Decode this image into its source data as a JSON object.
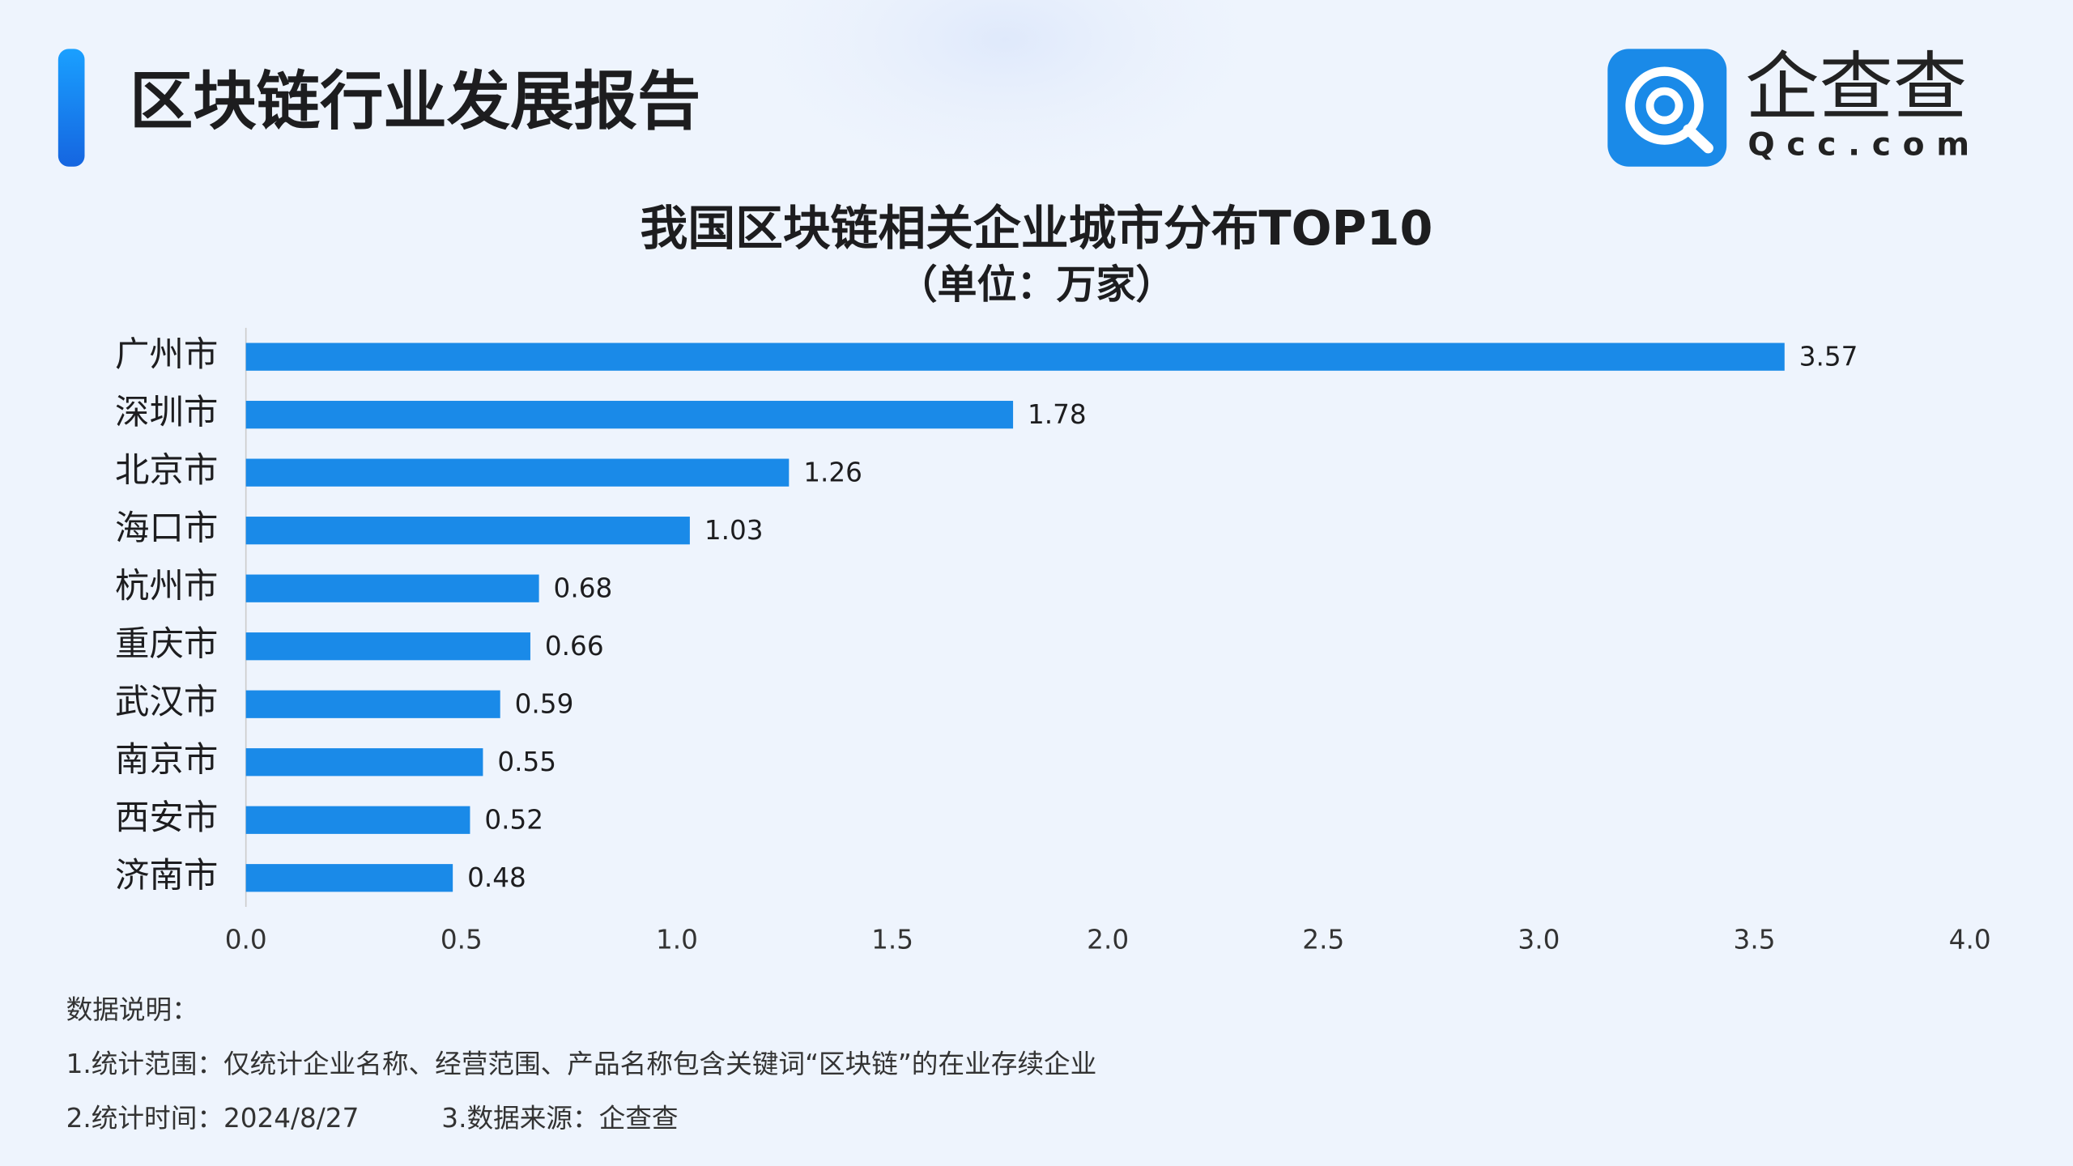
{
  "header": {
    "title": "区块链行业发展报告",
    "logo_text": "企查查",
    "logo_domain": "Qcc.com"
  },
  "chart_data": {
    "type": "bar",
    "orientation": "horizontal",
    "title": "我国区块链相关企业城市分布TOP10",
    "subtitle": "（单位：万家）",
    "categories": [
      "广州市",
      "深圳市",
      "北京市",
      "海口市",
      "杭州市",
      "重庆市",
      "武汉市",
      "南京市",
      "西安市",
      "济南市"
    ],
    "values": [
      3.57,
      1.78,
      1.26,
      1.03,
      0.68,
      0.66,
      0.59,
      0.55,
      0.52,
      0.48
    ],
    "color": "#1a8ae8",
    "xlim": [
      0,
      4
    ],
    "xticks": [
      {
        "value": 0,
        "label": "0.0"
      },
      {
        "value": 0.5,
        "label": "0.5"
      },
      {
        "value": 1,
        "label": "1.0"
      },
      {
        "value": 1.5,
        "label": "1.5"
      },
      {
        "value": 2,
        "label": "2.0"
      },
      {
        "value": 2.5,
        "label": "2.5"
      },
      {
        "value": 3,
        "label": "3.0"
      },
      {
        "value": 3.5,
        "label": "3.5"
      },
      {
        "value": 4,
        "label": "4.0"
      }
    ],
    "grid": false
  },
  "notes": {
    "heading": "数据说明：",
    "scope": "1.统计范围：仅统计企业名称、经营范围、产品名称包含关键词“区块链”的在业存续企业",
    "time": "2.统计时间：2024/8/27",
    "source": "3.数据来源：企查查"
  }
}
